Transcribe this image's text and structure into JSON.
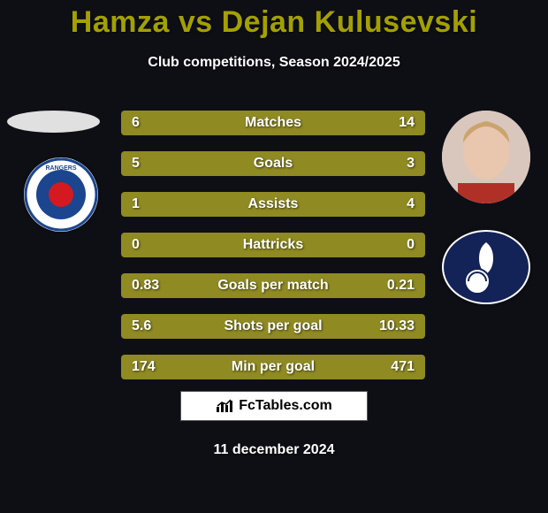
{
  "background_color": "#0e0f15",
  "title": {
    "text": "Hamza vs Dejan Kulusevski",
    "color": "#a3a000",
    "fontsize": 34
  },
  "subtitle": {
    "text": "Club competitions, Season 2024/2025",
    "color": "#ffffff",
    "fontsize": 16
  },
  "players": {
    "left_name": "Hamza",
    "right_name": "Dejan Kulusevski"
  },
  "clubs": {
    "left": {
      "name": "Rangers",
      "primary": "#1b458f",
      "secondary": "#d41920"
    },
    "right": {
      "name": "Tottenham Hotspur",
      "primary": "#132257",
      "secondary": "#ffffff"
    }
  },
  "bars": {
    "bar_color": "#8f8a22",
    "text_color": "#ffffff",
    "label_fontsize": 16,
    "rows": [
      {
        "label": "Matches",
        "left": "6",
        "right": "14"
      },
      {
        "label": "Goals",
        "left": "5",
        "right": "3"
      },
      {
        "label": "Assists",
        "left": "1",
        "right": "4"
      },
      {
        "label": "Hattricks",
        "left": "0",
        "right": "0"
      },
      {
        "label": "Goals per match",
        "left": "0.83",
        "right": "0.21"
      },
      {
        "label": "Shots per goal",
        "left": "5.6",
        "right": "10.33"
      },
      {
        "label": "Min per goal",
        "left": "174",
        "right": "471"
      }
    ]
  },
  "footer": {
    "brand_text": "FcTables.com",
    "date": "11 december 2024",
    "date_color": "#ffffff"
  }
}
